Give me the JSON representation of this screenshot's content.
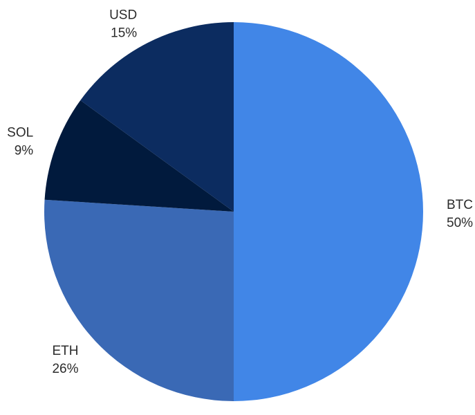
{
  "chart_data": {
    "type": "pie",
    "categories": [
      "BTC",
      "ETH",
      "SOL",
      "USD"
    ],
    "values": [
      50,
      26,
      9,
      15
    ],
    "value_labels": [
      "50%",
      "26%",
      "9%",
      "15%"
    ],
    "colors": [
      "#4186e7",
      "#3a69b5",
      "#011a3d",
      "#0c2c60"
    ],
    "start": "12 o'clock",
    "direction": "clockwise",
    "legend": "none",
    "labels_placement": "outside"
  }
}
